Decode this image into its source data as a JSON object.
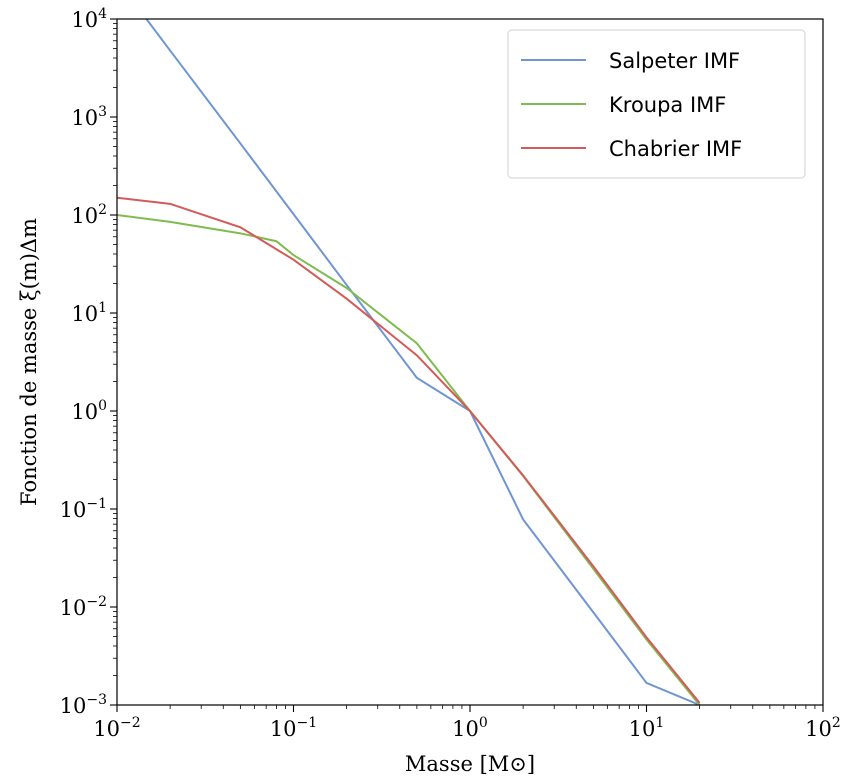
{
  "chart_data": {
    "type": "line",
    "xscale": "log",
    "yscale": "log",
    "xlim": [
      0.01,
      100
    ],
    "ylim": [
      0.001,
      10000
    ],
    "xlabel": "Masse [M⊙]",
    "ylabel": "Fonction de masse ξ(m)Δm",
    "x_tick_labels": [
      {
        "value": 0.01,
        "base": "10",
        "exp": "−2"
      },
      {
        "value": 0.1,
        "base": "10",
        "exp": "−1"
      },
      {
        "value": 1,
        "base": "10",
        "exp": "0"
      },
      {
        "value": 10,
        "base": "10",
        "exp": "1"
      },
      {
        "value": 100,
        "base": "10",
        "exp": "2"
      }
    ],
    "y_tick_labels": [
      {
        "value": 0.001,
        "base": "10",
        "exp": "−3"
      },
      {
        "value": 0.01,
        "base": "10",
        "exp": "−2"
      },
      {
        "value": 0.1,
        "base": "10",
        "exp": "−1"
      },
      {
        "value": 1,
        "base": "10",
        "exp": "0"
      },
      {
        "value": 10,
        "base": "10",
        "exp": "1"
      },
      {
        "value": 100,
        "base": "10",
        "exp": "2"
      },
      {
        "value": 1000,
        "base": "10",
        "exp": "3"
      },
      {
        "value": 10000,
        "base": "10",
        "exp": "4"
      }
    ],
    "legend_position": "top-right",
    "grid": false,
    "series": [
      {
        "name": "Salpeter IMF",
        "color": "#6f95d4",
        "x": [
          0.01,
          0.02,
          0.05,
          0.1,
          0.2,
          0.5,
          1,
          2,
          5,
          10,
          20
        ],
        "y": [
          25118.9,
          4765.1,
          537.3,
          102.0,
          19.34,
          2.18,
          1.0,
          0.0782,
          0.00882,
          0.00168,
          0.001
        ]
      },
      {
        "name": "Kroupa IMF",
        "color": "#7ebc50",
        "x": [
          0.01,
          0.02,
          0.05,
          0.08,
          0.1,
          0.2,
          0.5,
          1,
          2,
          5,
          10,
          20
        ],
        "y": [
          100,
          85,
          65,
          54,
          39,
          18,
          4.9,
          1.0,
          0.217,
          0.0245,
          0.00466,
          0.001
        ]
      },
      {
        "name": "Chabrier IMF",
        "color": "#d45a59",
        "x": [
          0.01,
          0.02,
          0.05,
          0.1,
          0.2,
          0.5,
          1,
          2,
          5,
          10,
          20
        ],
        "y": [
          150,
          130,
          75,
          35,
          14,
          3.7,
          1.0,
          0.22,
          0.026,
          0.0049,
          0.00105
        ]
      }
    ]
  }
}
